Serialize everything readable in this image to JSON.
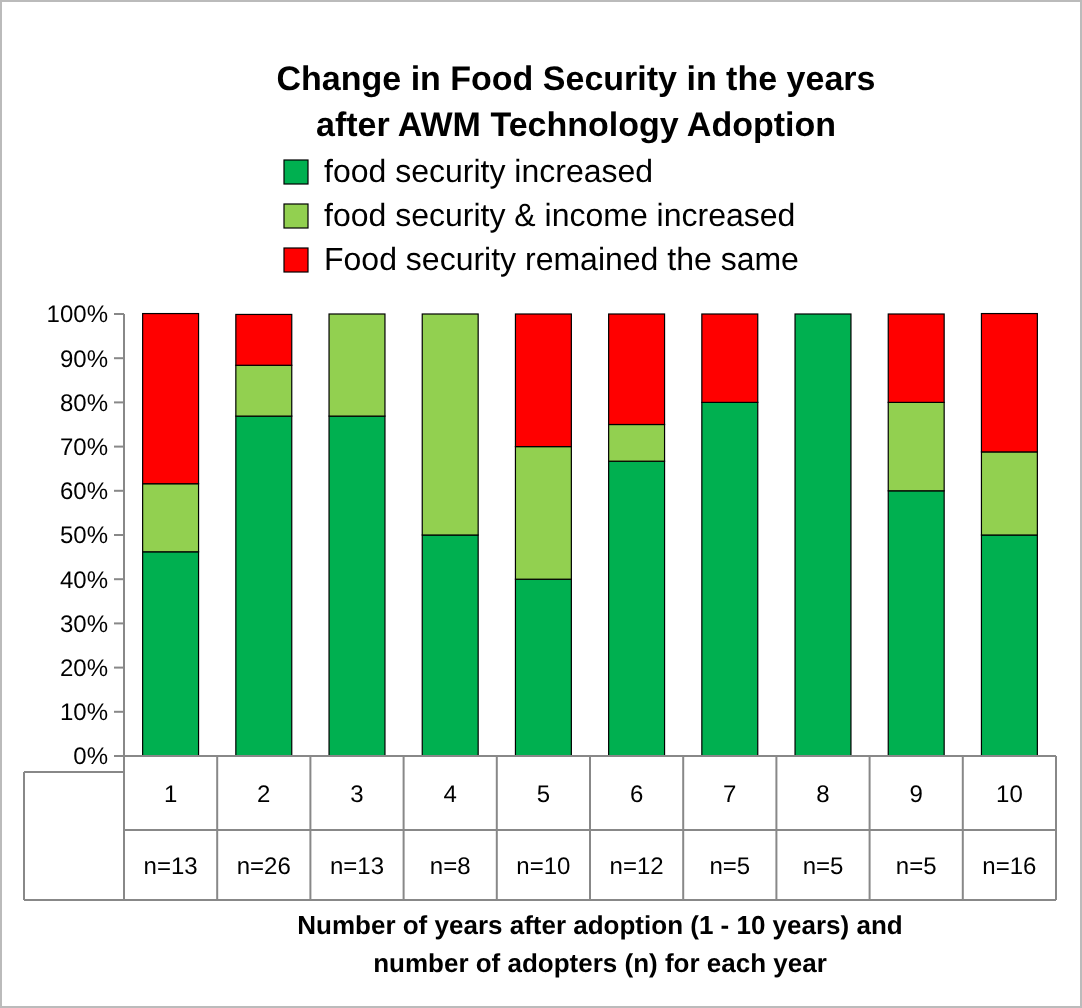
{
  "chart_data": {
    "type": "bar",
    "stacked": true,
    "title": "Change in Food Security in the years\nafter AWM Technology Adoption",
    "annotations": [
      "Number of years after adoption (1 - 10 years) and\nnumber of adopters (n) for each year"
    ],
    "categories": [
      "1\nn=13",
      "2\nn=26",
      "3\nn=13",
      "4\nn=8",
      "5\nn=10",
      "6\nn=12",
      "7\nn=5",
      "8\nn=5",
      "9\nn=5",
      "10\nn=16"
    ],
    "series": [
      {
        "name": "food security increased",
        "color": "#00b050",
        "values": [
          46.2,
          76.9,
          76.9,
          50,
          40,
          66.7,
          80,
          100,
          60,
          50
        ]
      },
      {
        "name": "food security & income increased",
        "color": "#92d050",
        "values": [
          15.4,
          11.5,
          23.1,
          50,
          30,
          8.3,
          0,
          0,
          20,
          18.8
        ]
      },
      {
        "name": "Food security remained the same",
        "color": "#ff0000",
        "values": [
          38.5,
          11.5,
          0,
          0,
          30,
          25,
          20,
          0,
          20,
          31.3
        ]
      }
    ],
    "ylim": [
      0,
      100
    ],
    "yticks": [
      {
        "value": 0,
        "label": "0%"
      },
      {
        "value": 10,
        "label": "10%"
      },
      {
        "value": 20,
        "label": "20%"
      },
      {
        "value": 30,
        "label": "30%"
      },
      {
        "value": 40,
        "label": "40%"
      },
      {
        "value": 50,
        "label": "50%"
      },
      {
        "value": 60,
        "label": "60%"
      },
      {
        "value": 70,
        "label": "70%"
      },
      {
        "value": 80,
        "label": "80%"
      },
      {
        "value": 90,
        "label": "90%"
      },
      {
        "value": 100,
        "label": "100%"
      }
    ],
    "legend": "top",
    "grid": false
  }
}
